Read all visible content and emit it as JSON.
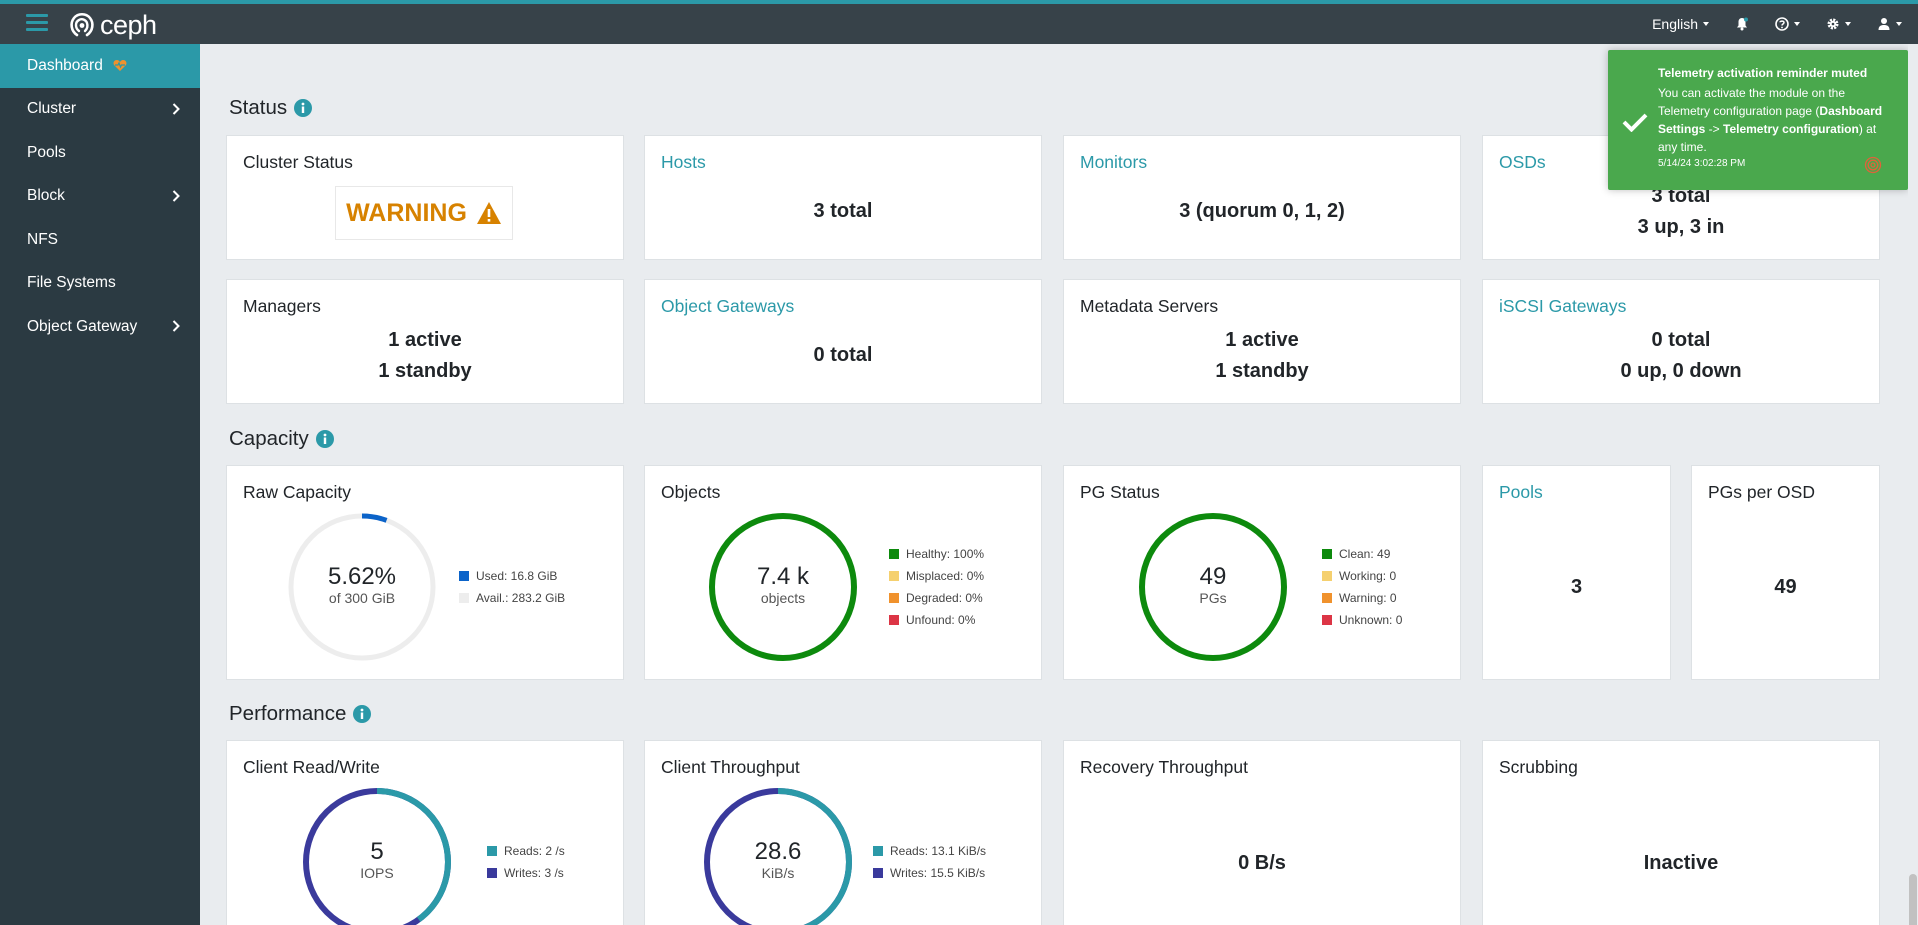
{
  "topbar": {
    "brand": "ceph",
    "language": "English",
    "icons": [
      "menu-icon",
      "bell-icon",
      "help-icon",
      "gear-icon",
      "user-icon"
    ]
  },
  "sidebar": {
    "items": [
      {
        "label": "Dashboard"
      },
      {
        "label": "Cluster"
      },
      {
        "label": "Pools"
      },
      {
        "label": "Block"
      },
      {
        "label": "NFS"
      },
      {
        "label": "File Systems"
      },
      {
        "label": "Object Gateway"
      }
    ]
  },
  "sections": {
    "status": "Status",
    "capacity": "Capacity",
    "performance": "Performance"
  },
  "status": {
    "cluster_status": {
      "title": "Cluster Status",
      "value": "WARNING"
    },
    "hosts": {
      "title": "Hosts",
      "value": "3 total"
    },
    "monitors": {
      "title": "Monitors",
      "value": "3 (quorum 0, 1, 2)"
    },
    "osds": {
      "title": "OSDs",
      "line1": "3 total",
      "line2": "3 up, 3 in"
    },
    "managers": {
      "title": "Managers",
      "line1": "1 active",
      "line2": "1 standby"
    },
    "object_gateways": {
      "title": "Object Gateways",
      "value": "0 total"
    },
    "metadata_servers": {
      "title": "Metadata Servers",
      "line1": "1 active",
      "line2": "1 standby"
    },
    "iscsi_gateways": {
      "title": "iSCSI Gateways",
      "line1": "0 total",
      "line2": "0 up, 0 down"
    }
  },
  "capacity": {
    "raw": {
      "title": "Raw Capacity",
      "value": "5.62%",
      "sub": "of 300 GiB",
      "used_fraction": 0.0562,
      "legend": [
        "Used: 16.8 GiB",
        "Avail.: 283.2 GiB"
      ]
    },
    "objects": {
      "title": "Objects",
      "value": "7.4 k",
      "sub": "objects",
      "legend": [
        "Healthy: 100%",
        "Misplaced: 0%",
        "Degraded: 0%",
        "Unfound: 0%"
      ]
    },
    "pg_status": {
      "title": "PG Status",
      "value": "49",
      "sub": "PGs",
      "legend": [
        "Clean: 49",
        "Working: 0",
        "Warning: 0",
        "Unknown: 0"
      ]
    },
    "pools": {
      "title": "Pools",
      "value": "3"
    },
    "pgs_per_osd": {
      "title": "PGs per OSD",
      "value": "49"
    }
  },
  "performance": {
    "client_rw": {
      "title": "Client Read/Write",
      "value": "5",
      "sub": "IOPS",
      "read_fraction": 0.4,
      "legend": [
        "Reads: 2 /s",
        "Writes: 3 /s"
      ]
    },
    "client_throughput": {
      "title": "Client Throughput",
      "value": "28.6",
      "sub": "KiB/s",
      "read_fraction": 0.458,
      "legend": [
        "Reads: 13.1 KiB/s",
        "Writes: 15.5 KiB/s"
      ]
    },
    "recovery": {
      "title": "Recovery Throughput",
      "value": "0 B/s"
    },
    "scrubbing": {
      "title": "Scrubbing",
      "value": "Inactive"
    }
  },
  "toast": {
    "title": "Telemetry activation reminder muted",
    "msg_a": "You can activate the module on the Telemetry configuration page (",
    "msg_b": "Dashboard Settings",
    "msg_c": " -> ",
    "msg_d": "Telemetry configuration",
    "msg_e": ") at any time.",
    "time": "5/14/24 3:02:28 PM"
  },
  "colors": {
    "accent": "#2b99a8",
    "used": "#0b63c9",
    "avail": "#ededed",
    "healthy": "#0d8a0d",
    "misplaced": "#f5d06f",
    "degraded": "#f0922d",
    "unfound": "#dc3545",
    "reads": "#2b99a8",
    "writes": "#3a3a9c",
    "warning": "#d78200",
    "toast": "#4aa84d"
  }
}
